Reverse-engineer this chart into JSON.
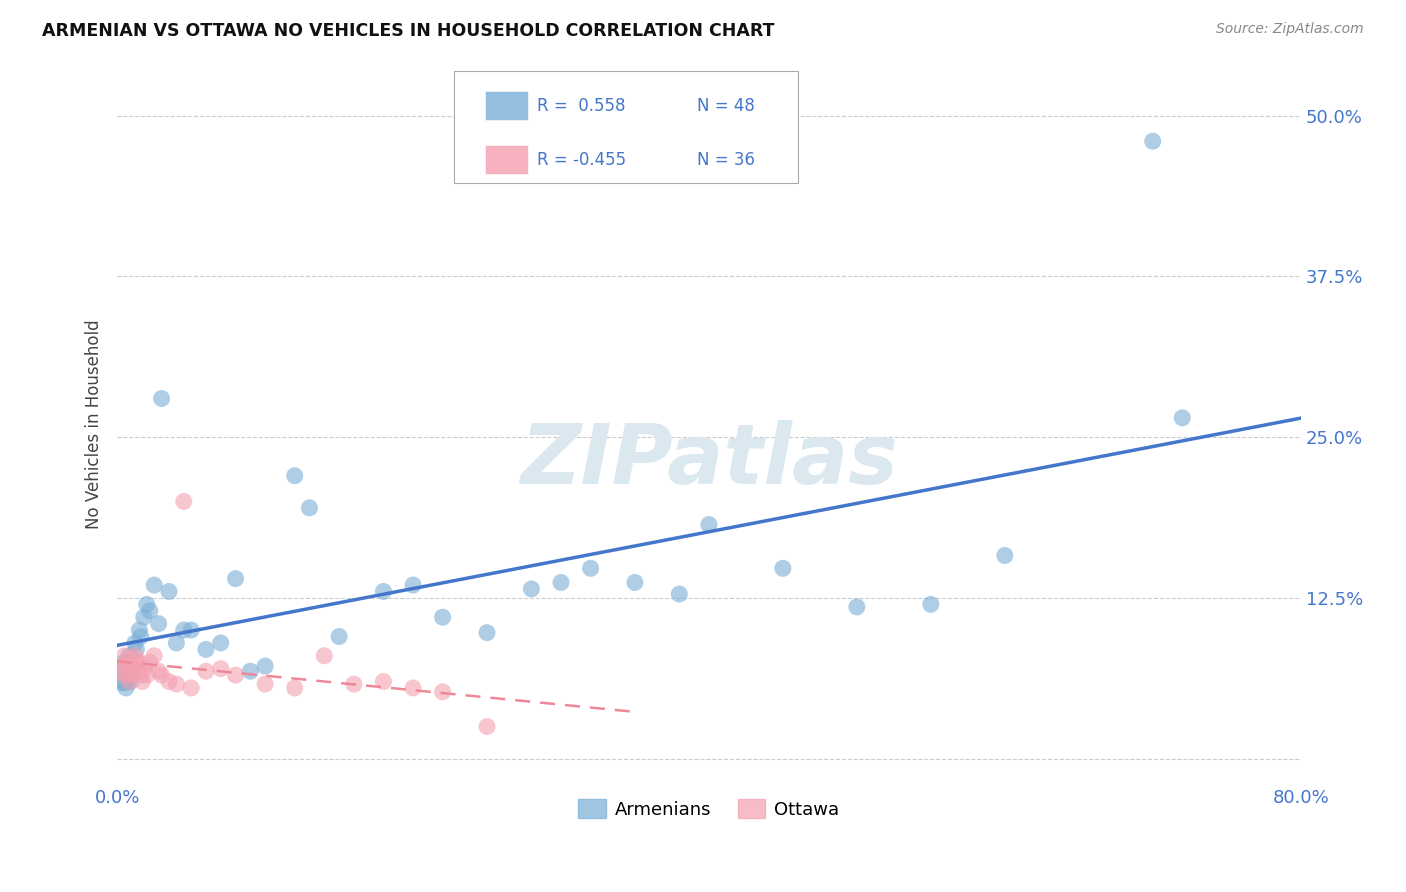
{
  "title": "ARMENIAN VS OTTAWA NO VEHICLES IN HOUSEHOLD CORRELATION CHART",
  "source": "Source: ZipAtlas.com",
  "ylabel": "No Vehicles in Household",
  "xlim": [
    0.0,
    0.8
  ],
  "ylim": [
    -0.02,
    0.54
  ],
  "xticks": [
    0.0,
    0.2,
    0.4,
    0.6,
    0.8
  ],
  "yticks": [
    0.0,
    0.125,
    0.25,
    0.375,
    0.5
  ],
  "ytick_labels": [
    "",
    "12.5%",
    "25.0%",
    "37.5%",
    "50.0%"
  ],
  "xtick_labels": [
    "0.0%",
    "",
    "",
    "",
    "80.0%"
  ],
  "background_color": "#ffffff",
  "grid_color": "#cccccc",
  "legend_R1": "R =  0.558",
  "legend_N1": "N = 48",
  "legend_R2": "R = -0.455",
  "legend_N2": "N = 36",
  "armenian_color": "#7aaed6",
  "ottawa_color": "#f4a0b0",
  "line_blue": "#4477cc",
  "line_pink": "#ee8899",
  "tick_color": "#4477cc",
  "watermark_color": "#dce8f0",
  "watermark": "ZIPatlas",
  "legend_labels": [
    "Armenians",
    "Ottawa"
  ],
  "armenian_x": [
    0.003,
    0.005,
    0.005,
    0.006,
    0.007,
    0.008,
    0.008,
    0.009,
    0.01,
    0.01,
    0.012,
    0.013,
    0.015,
    0.016,
    0.018,
    0.02,
    0.022,
    0.025,
    0.028,
    0.03,
    0.035,
    0.04,
    0.045,
    0.05,
    0.06,
    0.07,
    0.08,
    0.09,
    0.1,
    0.12,
    0.13,
    0.15,
    0.18,
    0.2,
    0.22,
    0.25,
    0.28,
    0.3,
    0.32,
    0.35,
    0.38,
    0.4,
    0.45,
    0.5,
    0.55,
    0.6,
    0.7,
    0.72
  ],
  "armenian_y": [
    0.065,
    0.06,
    0.075,
    0.055,
    0.07,
    0.065,
    0.08,
    0.06,
    0.072,
    0.068,
    0.09,
    0.085,
    0.1,
    0.095,
    0.11,
    0.12,
    0.115,
    0.135,
    0.105,
    0.28,
    0.13,
    0.09,
    0.1,
    0.1,
    0.085,
    0.09,
    0.14,
    0.068,
    0.072,
    0.22,
    0.195,
    0.095,
    0.13,
    0.135,
    0.11,
    0.098,
    0.132,
    0.137,
    0.148,
    0.137,
    0.128,
    0.182,
    0.148,
    0.118,
    0.12,
    0.158,
    0.48,
    0.265
  ],
  "armenian_sizes": [
    500,
    200,
    150,
    150,
    150,
    150,
    150,
    150,
    150,
    150,
    150,
    150,
    150,
    150,
    150,
    150,
    150,
    150,
    150,
    150,
    150,
    150,
    150,
    150,
    150,
    150,
    150,
    150,
    150,
    150,
    150,
    150,
    150,
    150,
    150,
    150,
    150,
    150,
    150,
    150,
    150,
    150,
    150,
    150,
    150,
    150,
    150,
    150
  ],
  "ottawa_x": [
    0.003,
    0.004,
    0.005,
    0.006,
    0.007,
    0.008,
    0.009,
    0.01,
    0.011,
    0.012,
    0.013,
    0.014,
    0.015,
    0.016,
    0.017,
    0.018,
    0.02,
    0.022,
    0.025,
    0.028,
    0.03,
    0.035,
    0.04,
    0.045,
    0.05,
    0.06,
    0.07,
    0.08,
    0.1,
    0.12,
    0.14,
    0.16,
    0.18,
    0.2,
    0.22,
    0.25
  ],
  "ottawa_y": [
    0.068,
    0.072,
    0.08,
    0.065,
    0.075,
    0.06,
    0.078,
    0.07,
    0.065,
    0.08,
    0.075,
    0.068,
    0.075,
    0.065,
    0.06,
    0.07,
    0.065,
    0.075,
    0.08,
    0.068,
    0.065,
    0.06,
    0.058,
    0.2,
    0.055,
    0.068,
    0.07,
    0.065,
    0.058,
    0.055,
    0.08,
    0.058,
    0.06,
    0.055,
    0.052,
    0.025
  ],
  "ottawa_sizes": [
    200,
    150,
    150,
    150,
    150,
    150,
    150,
    150,
    150,
    150,
    150,
    150,
    150,
    150,
    150,
    150,
    150,
    150,
    150,
    150,
    150,
    150,
    150,
    150,
    150,
    150,
    150,
    150,
    150,
    150,
    150,
    150,
    150,
    150,
    150,
    150
  ]
}
